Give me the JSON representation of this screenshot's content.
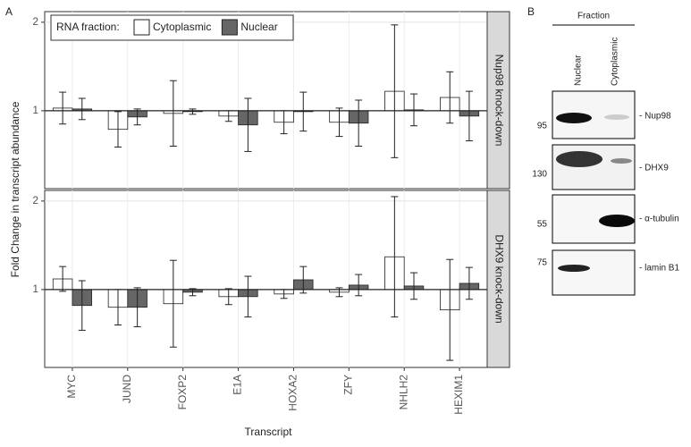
{
  "figure": {
    "panel_a_label": "A",
    "y_label": "Fold Change in transcript abundance",
    "x_label": "Transcript",
    "legend_title": "RNA fraction:"
  },
  "chart_data": [
    {
      "type": "bar",
      "facet": "Nup98 knock-down",
      "baseline": 1,
      "grid": true,
      "categories": [
        "MYC",
        "JUND",
        "FOXP2",
        "E1A",
        "HOXA2",
        "ZFY",
        "NHLH2",
        "HEXIM1"
      ],
      "ylim": [
        0.12,
        2.12
      ],
      "yticks": [
        1,
        2
      ],
      "series": [
        {
          "name": "Cytoplasmic",
          "color": "#ffffff",
          "values": [
            1.03,
            0.79,
            0.97,
            0.94,
            0.87,
            0.87,
            1.22,
            1.15
          ],
          "errors": [
            0.18,
            0.2,
            0.37,
            0.06,
            0.13,
            0.16,
            0.75,
            0.29
          ]
        },
        {
          "name": "Nuclear",
          "color": "#666666",
          "values": [
            1.02,
            0.93,
            0.99,
            0.84,
            0.99,
            0.86,
            1.01,
            0.94
          ],
          "errors": [
            0.12,
            0.09,
            0.03,
            0.3,
            0.22,
            0.26,
            0.18,
            0.28
          ]
        }
      ]
    },
    {
      "type": "bar",
      "facet": "DHX9 knock-down",
      "baseline": 1,
      "grid": true,
      "categories": [
        "MYC",
        "JUND",
        "FOXP2",
        "E1A",
        "HOXA2",
        "ZFY",
        "NHLH2",
        "HEXIM1"
      ],
      "ylim": [
        0.12,
        2.12
      ],
      "yticks": [
        1,
        2
      ],
      "series": [
        {
          "color": "#ffffff",
          "values": [
            1.12,
            0.8,
            0.84,
            0.92,
            0.95,
            0.97,
            1.37,
            0.77
          ],
          "errors": [
            0.14,
            0.2,
            0.49,
            0.09,
            0.05,
            0.05,
            0.68,
            0.57
          ]
        },
        {
          "color": "#666666",
          "values": [
            0.82,
            0.8,
            0.97,
            0.92,
            1.11,
            1.05,
            1.04,
            1.07
          ],
          "errors": [
            0.28,
            0.22,
            0.04,
            0.23,
            0.15,
            0.12,
            0.15,
            0.18
          ]
        }
      ]
    }
  ],
  "western_blot": {
    "panel_label": "B",
    "header": "Fraction",
    "columns": [
      "Nuclear",
      "Cytoplasmic"
    ],
    "rows": [
      {
        "marker": "95",
        "label": "- Nup98"
      },
      {
        "marker": "130",
        "label": "- DHX9"
      },
      {
        "marker": "55",
        "label": "- α-tubulin"
      },
      {
        "marker": "75",
        "label": "- lamin B1"
      }
    ]
  }
}
